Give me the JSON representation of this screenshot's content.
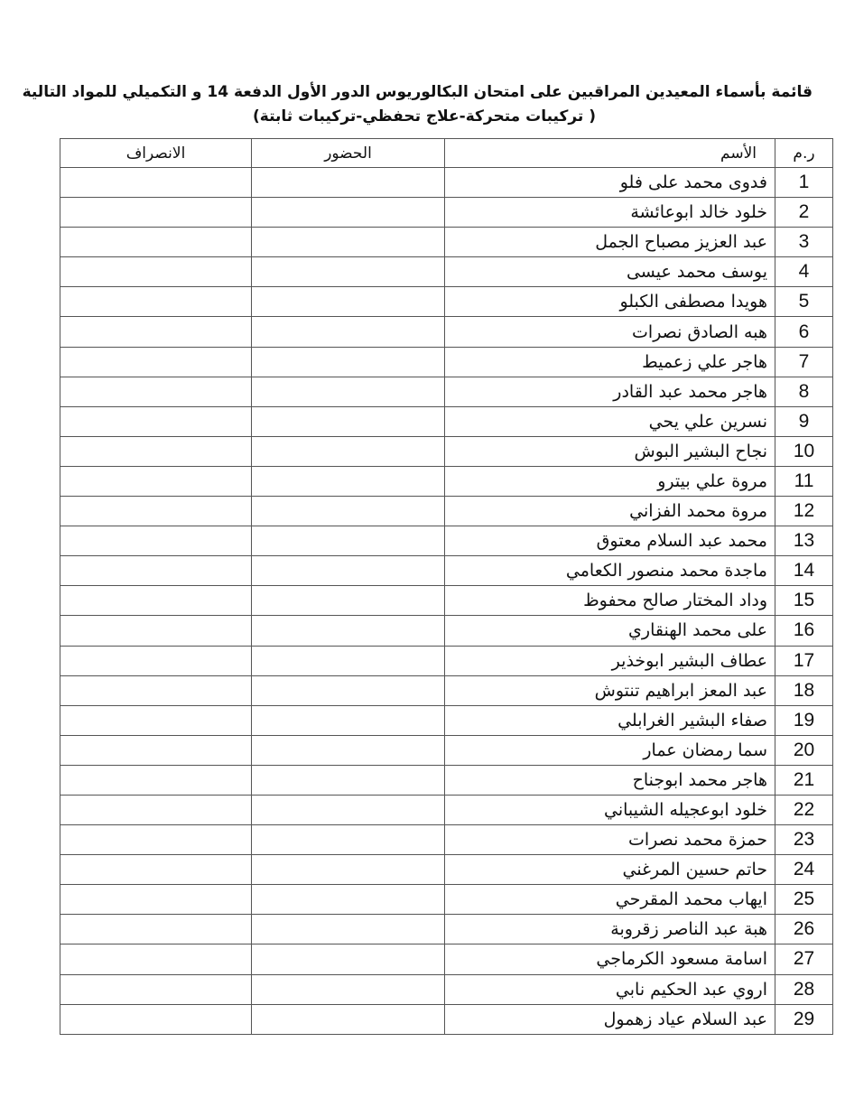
{
  "document": {
    "title_line1": "قائمة بأسماء المعيدين المراقبين على امتحان البكالوريوس الدور الأول الدفعة 14 و التكميلي للمواد التالية",
    "title_line2": "( تركيبات متحركة-علاج تحفظي-تركيبات ثابتة)"
  },
  "table": {
    "headers": {
      "number": "ر.م",
      "name": "الأسم",
      "attendance": "الحضور",
      "departure": "الانصراف"
    },
    "rows": [
      {
        "n": "1",
        "name": "فدوى محمد على فلو"
      },
      {
        "n": "2",
        "name": "خلود خالد ابوعائشة"
      },
      {
        "n": "3",
        "name": "عبد العزيز مصباح الجمل"
      },
      {
        "n": "4",
        "name": "يوسف محمد عيسى"
      },
      {
        "n": "5",
        "name": "هويدا مصطفى الكبلو"
      },
      {
        "n": "6",
        "name": "هبه الصادق نصرات"
      },
      {
        "n": "7",
        "name": "هاجر علي زعميط"
      },
      {
        "n": "8",
        "name": "هاجر محمد عبد القادر"
      },
      {
        "n": "9",
        "name": "نسرين علي يحي"
      },
      {
        "n": "10",
        "name": "نجاح البشير البوش"
      },
      {
        "n": "11",
        "name": "مروة علي بيترو"
      },
      {
        "n": "12",
        "name": "مروة محمد الفزاني"
      },
      {
        "n": "13",
        "name": "محمد عبد السلام معتوق"
      },
      {
        "n": "14",
        "name": "ماجدة محمد منصور الكعامي"
      },
      {
        "n": "15",
        "name": "وداد المختار صالح محفوظ"
      },
      {
        "n": "16",
        "name": "على محمد الهنقاري"
      },
      {
        "n": "17",
        "name": "عطاف البشير ابوخذير"
      },
      {
        "n": "18",
        "name": "عبد المعز ابراهيم تنتوش"
      },
      {
        "n": "19",
        "name": "صفاء البشير الغرابلي"
      },
      {
        "n": "20",
        "name": "سما رمضان عمار"
      },
      {
        "n": "21",
        "name": "هاجر محمد ابوجناح"
      },
      {
        "n": "22",
        "name": "خلود ابوعجيله الشيباني"
      },
      {
        "n": "23",
        "name": "حمزة محمد نصرات"
      },
      {
        "n": "24",
        "name": "حاتم حسين المرغني"
      },
      {
        "n": "25",
        "name": "ايهاب محمد المقرحي"
      },
      {
        "n": "26",
        "name": "هبة عبد الناصر زقروبة"
      },
      {
        "n": "27",
        "name": "اسامة مسعود الكرماجي"
      },
      {
        "n": "28",
        "name": "اروي عبد الحكيم نابي"
      },
      {
        "n": "29",
        "name": "عبد السلام عياد زهمول"
      }
    ]
  }
}
